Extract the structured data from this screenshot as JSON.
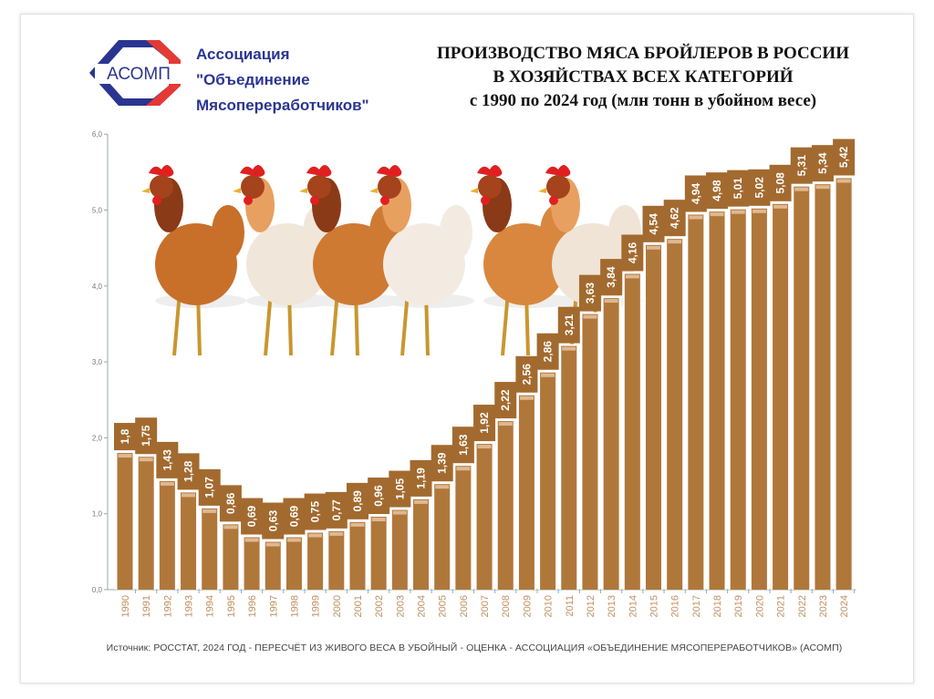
{
  "logo": {
    "text": "АСОМП",
    "colors": {
      "blue": "#2a3591",
      "red": "#e53935"
    }
  },
  "org_name": [
    "Ассоциация",
    "\"Объединение",
    "Мясопереработчиков\""
  ],
  "title_lines": [
    "ПРОИЗВОДСТВО МЯСА БРОЙЛЕРОВ В РОССИИ",
    "В ХОЗЯЙСТВАХ ВСЕХ КАТЕГОРИЙ",
    "с  1990 по 2024 год (млн тонн в убойном весе)"
  ],
  "footer": "Источник: РОССТАТ, 2024 ГОД - ПЕРЕСЧЁТ ИЗ ЖИВОГО ВЕСА В УБОЙНЫЙ - ОЦЕНКА - АССОЦИАЦИЯ «ОБЪЕДИНЕНИЕ МЯСОПЕРЕРАБОТЧИКОВ» (АСОМП)",
  "chart_data": {
    "type": "bar",
    "title": "ПРОИЗВОДСТВО МЯСА БРОЙЛЕРОВ В РОССИИ В ХОЗЯЙСТВАХ ВСЕХ КАТЕГОРИЙ с 1990 по 2024 год (млн тонн в убойном весе)",
    "categories": [
      "1990",
      "1991",
      "1992",
      "1993",
      "1994",
      "1995",
      "1996",
      "1997",
      "1998",
      "1999",
      "2000",
      "2001",
      "2002",
      "2003",
      "2004",
      "2005",
      "2006",
      "2007",
      "2008",
      "2009",
      "2010",
      "2011",
      "2012",
      "2013",
      "2014",
      "2015",
      "2016",
      "2017",
      "2018",
      "2019",
      "2020",
      "2021",
      "2022",
      "2023",
      "2024"
    ],
    "values": [
      1.8,
      1.75,
      1.43,
      1.28,
      1.07,
      0.86,
      0.69,
      0.63,
      0.69,
      0.75,
      0.77,
      0.89,
      0.96,
      1.05,
      1.19,
      1.39,
      1.63,
      1.92,
      2.22,
      2.56,
      2.86,
      3.21,
      3.63,
      3.84,
      4.16,
      4.54,
      4.62,
      4.94,
      4.98,
      5.01,
      5.02,
      5.08,
      5.31,
      5.34,
      5.42
    ],
    "data_labels": [
      "1,8",
      "1,75",
      "1,43",
      "1,28",
      "1,07",
      "0,86",
      "0,69",
      "0,63",
      "0,69",
      "0,75",
      "0,77",
      "0,89",
      "0,96",
      "1,05",
      "1,19",
      "1,39",
      "1,63",
      "1,92",
      "2,22",
      "2,56",
      "2,86",
      "3,21",
      "3,63",
      "3,84",
      "4,16",
      "4,54",
      "4,62",
      "4,94",
      "4,98",
      "5,01",
      "5,02",
      "5,08",
      "5,31",
      "5,34",
      "5,42"
    ],
    "yticks": [
      "0,0",
      "1,0",
      "2,0",
      "3,0",
      "4,0",
      "5,0",
      "6,0"
    ],
    "ylim": [
      0,
      6
    ],
    "grid": false,
    "colors": {
      "bar": "#b0773a",
      "label_box": "#a36a2f",
      "tick": "#c09060"
    }
  }
}
